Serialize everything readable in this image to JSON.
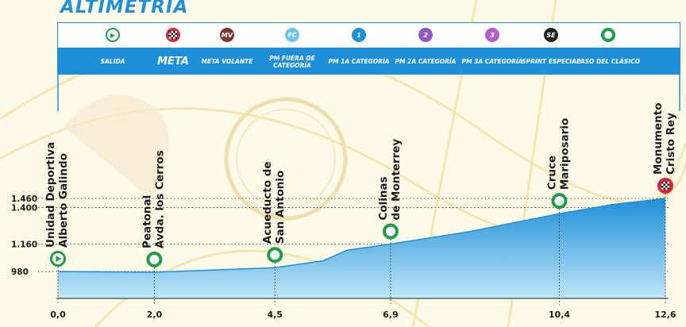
{
  "title": "ALTIMETRÍA",
  "legend": [
    {
      "key": "salida",
      "label": "SALIDA",
      "icon": "play-icon",
      "color": "#1e9e4a"
    },
    {
      "key": "meta",
      "label": "META",
      "icon": "checkered-flag-icon",
      "color": "#d7263d"
    },
    {
      "key": "meta_volante",
      "label": "META VOLANTE",
      "icon": "mv-icon",
      "glyph": "MV",
      "color": "#7a3b2e"
    },
    {
      "key": "pm_fuera",
      "label": "PM FUERA DE CATEGORÍA",
      "icon": "fc-icon",
      "glyph": "FC",
      "color": "#6ec6f0"
    },
    {
      "key": "pm_1a",
      "label": "PM 1A CATEGORÍA",
      "icon": "mountain-1-icon",
      "glyph": "1",
      "color": "#1e8fd8"
    },
    {
      "key": "pm_2a",
      "label": "PM 2A CATEGORÍA",
      "icon": "mountain-2-icon",
      "glyph": "2",
      "color": "#8e5cc4"
    },
    {
      "key": "pm_3a",
      "label": "PM 3A CATEGORÍA",
      "icon": "mountain-3-icon",
      "glyph": "3",
      "color": "#b160c8"
    },
    {
      "key": "sprint",
      "label": "SPRINT ESPECIAL",
      "icon": "se-icon",
      "glyph": "SE",
      "color": "#222222"
    },
    {
      "key": "paso",
      "label": "PASO DEL CLÁSICO",
      "icon": "ring-icon",
      "color": "#1e9e4a"
    }
  ],
  "chart_data": {
    "type": "area",
    "xlabel": "",
    "ylabel": "",
    "x_ticks": [
      "0,0",
      "2,0",
      "4,5",
      "6,9",
      "10,4",
      "12,6"
    ],
    "y_ticks": [
      {
        "label": "980",
        "value": 980
      },
      {
        "label": "1.160",
        "value": 1160
      },
      {
        "label": "1.400",
        "value": 1400
      },
      {
        "label": "1.460",
        "value": 1460
      }
    ],
    "profile": [
      {
        "km": 0.0,
        "alt": 980
      },
      {
        "km": 2.0,
        "alt": 975
      },
      {
        "km": 4.5,
        "alt": 1005
      },
      {
        "km": 5.5,
        "alt": 1050
      },
      {
        "km": 6.0,
        "alt": 1120
      },
      {
        "km": 6.9,
        "alt": 1160
      },
      {
        "km": 8.5,
        "alt": 1240
      },
      {
        "km": 10.4,
        "alt": 1360
      },
      {
        "km": 11.5,
        "alt": 1420
      },
      {
        "km": 12.6,
        "alt": 1460
      }
    ],
    "waypoints": [
      {
        "km": 0.0,
        "type": "salida",
        "lines": [
          "Unidad Deportiva",
          "Alberto Galindo"
        ]
      },
      {
        "km": 2.0,
        "type": "paso",
        "lines": [
          "Peatonal",
          "Avda. los Cerros"
        ]
      },
      {
        "km": 4.5,
        "type": "paso",
        "lines": [
          "Acueducto de",
          "San Antonio"
        ]
      },
      {
        "km": 6.9,
        "type": "paso",
        "lines": [
          "Colinas",
          "de Monterrey"
        ]
      },
      {
        "km": 10.4,
        "type": "paso",
        "lines": [
          "Cruce",
          "Mariposario"
        ]
      },
      {
        "km": 12.6,
        "type": "meta",
        "lines": [
          "Monumento",
          "Cristo Rey"
        ]
      }
    ],
    "colors": {
      "fill_top": "#1e8fd8",
      "fill_bottom": "#bfe6f8",
      "line": "#1e8fd8",
      "paso": "#1e9e4a",
      "meta": "#d7263d"
    }
  }
}
